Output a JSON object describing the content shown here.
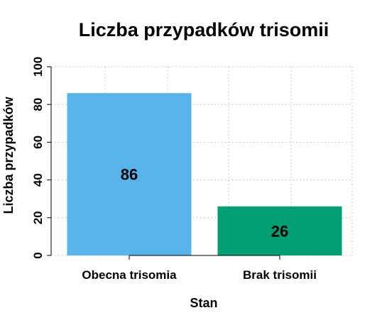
{
  "chart_data": {
    "type": "bar",
    "title": "Liczba przypadków trisomii",
    "xlabel": "Stan",
    "ylabel": "Liczba przypadków",
    "categories": [
      "Obecna trisomia",
      "Brak trisomii"
    ],
    "values": [
      86,
      26
    ],
    "data_labels": [
      "86",
      "26"
    ],
    "colors": [
      "#56b4e9",
      "#009e73"
    ],
    "ylim": [
      0,
      100
    ],
    "yticks": [
      0,
      20,
      40,
      60,
      80,
      100
    ],
    "grid": true,
    "legend": "none"
  }
}
